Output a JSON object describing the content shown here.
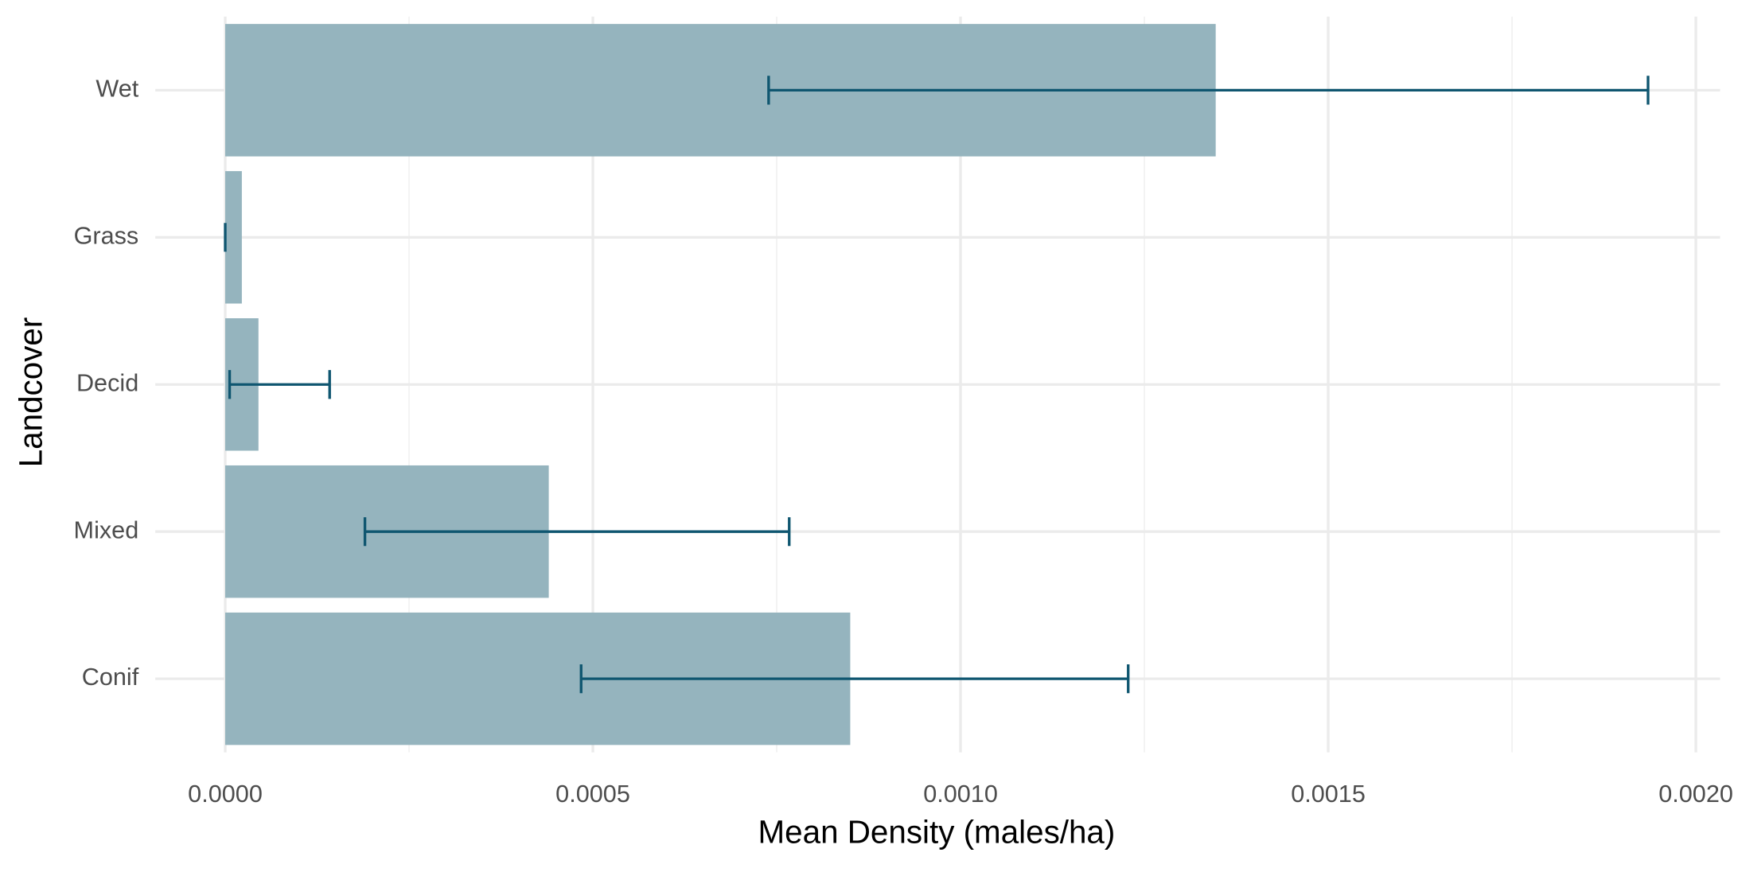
{
  "chart_data": {
    "type": "bar",
    "orientation": "horizontal",
    "x_label": "Mean Density (males/ha)",
    "y_label": "Landcover",
    "categories": [
      "Conif",
      "Mixed",
      "Decid",
      "Grass",
      "Wet"
    ],
    "values": [
      0.00085,
      0.00044,
      4.52e-05,
      2.26e-05,
      0.001347
    ],
    "lower": [
      0.000484,
      0.00019,
      6e-06,
      0,
      0.000739
    ],
    "upper": [
      0.001228,
      0.000767,
      0.000142,
      0,
      0.001935
    ],
    "color": "#95b4be",
    "error_color": "#0f5670",
    "xlim": [
      -9.51e-05,
      0.002033
    ],
    "xticks": [
      {
        "value": 0,
        "label": "0.0000"
      },
      {
        "value": 0.0005,
        "label": "0.0005"
      },
      {
        "value": 0.001,
        "label": "0.0010"
      },
      {
        "value": 0.0015,
        "label": "0.0015"
      },
      {
        "value": 0.002,
        "label": "0.0020"
      }
    ],
    "xminor": [
      0.00025,
      0.00075,
      0.00125,
      0.00175
    ],
    "grid": true
  }
}
